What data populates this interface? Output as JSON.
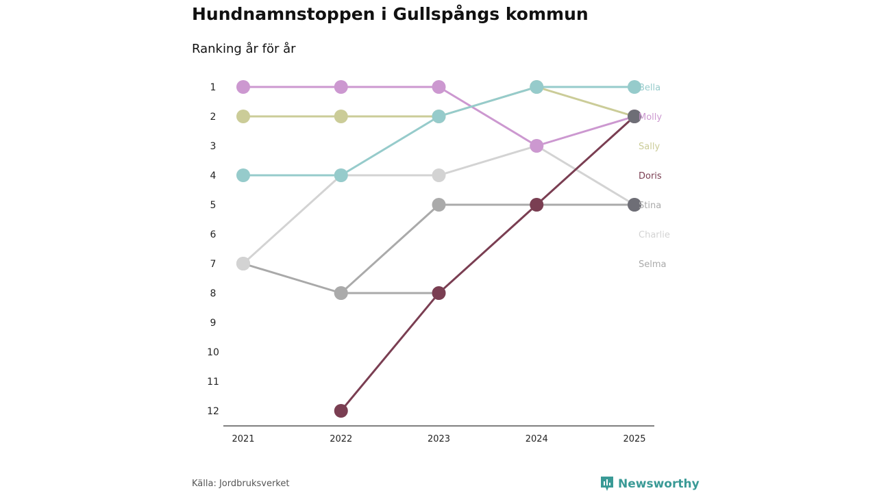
{
  "title": "Hundnamnstoppen i Gullspångs kommun",
  "subtitle": "Ranking år för år",
  "source": "Källa: Jordbruksverket",
  "brand": "Newsworthy",
  "brand_color": "#3a9a96",
  "chart_data": {
    "type": "line",
    "chart_kind": "bump",
    "title": "Hundnamnstoppen i Gullspångs kommun",
    "subtitle": "Ranking år för år",
    "xlabel": "",
    "ylabel": "",
    "x": [
      "2021",
      "2022",
      "2023",
      "2024",
      "2025"
    ],
    "y_ticks": [
      "1",
      "2",
      "3",
      "4",
      "5",
      "6",
      "7",
      "8",
      "9",
      "10",
      "11",
      "12"
    ],
    "ylim": [
      1,
      12
    ],
    "y_inverted": true,
    "grid": false,
    "series": [
      {
        "name": "Bella",
        "color": "#96cbcb",
        "values": [
          4,
          4,
          2,
          1,
          1
        ]
      },
      {
        "name": "Molly",
        "color": "#cc98d0",
        "values": [
          1,
          1,
          1,
          3,
          2
        ]
      },
      {
        "name": "Sally",
        "color": "#cbcc98",
        "values": [
          2,
          2,
          2,
          1,
          2
        ]
      },
      {
        "name": "Doris",
        "color": "#7a3e52",
        "values": [
          null,
          12,
          8,
          5,
          2
        ]
      },
      {
        "name": "Stina",
        "color": "#aaaaaa",
        "values": [
          null,
          8,
          5,
          5,
          5
        ]
      },
      {
        "name": "Charlie",
        "color": "#d3d3d3",
        "values": [
          7,
          4,
          4,
          3,
          5
        ]
      },
      {
        "name": "Selma",
        "color": "#a9a9a9",
        "values": [
          7,
          8,
          8,
          null,
          null
        ]
      }
    ],
    "end_labels": [
      "Bella",
      "Molly",
      "Sally",
      "Doris",
      "Stina",
      "Charlie",
      "Selma"
    ],
    "top_marker_color": "#6e6e76"
  }
}
